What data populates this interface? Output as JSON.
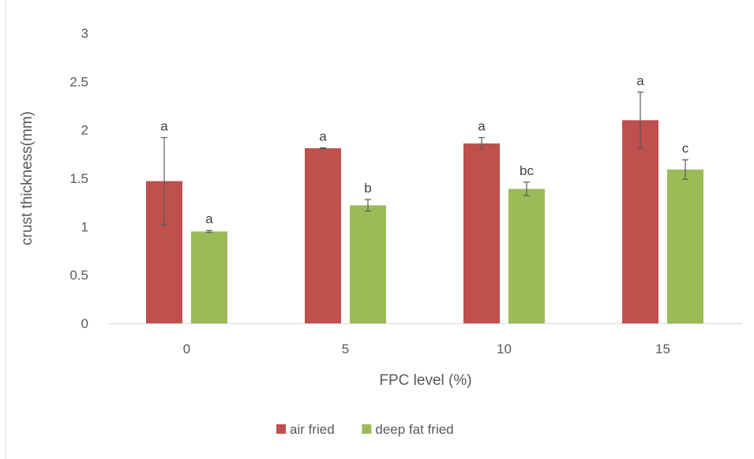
{
  "chart_data": {
    "type": "bar",
    "title": "",
    "xlabel": "FPC level (%)",
    "ylabel": "crust thickness(mm)",
    "ylim": [
      0,
      3
    ],
    "yticks": [
      "0",
      "0.5",
      "1",
      "1.5",
      "2",
      "2.5",
      "3"
    ],
    "categories": [
      "0",
      "5",
      "10",
      "15"
    ],
    "grid": false,
    "legend_position": "bottom",
    "series": [
      {
        "name": "air fried",
        "color": "#c0504d",
        "values": [
          1.47,
          1.81,
          1.86,
          2.1
        ],
        "error": [
          0.45,
          0.005,
          0.06,
          0.29
        ],
        "significance": [
          "a",
          "a",
          "a",
          "a"
        ]
      },
      {
        "name": "deep fat fried",
        "color": "#9bbb59",
        "values": [
          0.95,
          1.22,
          1.39,
          1.59
        ],
        "error": [
          0.01,
          0.06,
          0.07,
          0.1
        ],
        "significance": [
          "a",
          "b",
          "bc",
          "c"
        ]
      }
    ]
  }
}
